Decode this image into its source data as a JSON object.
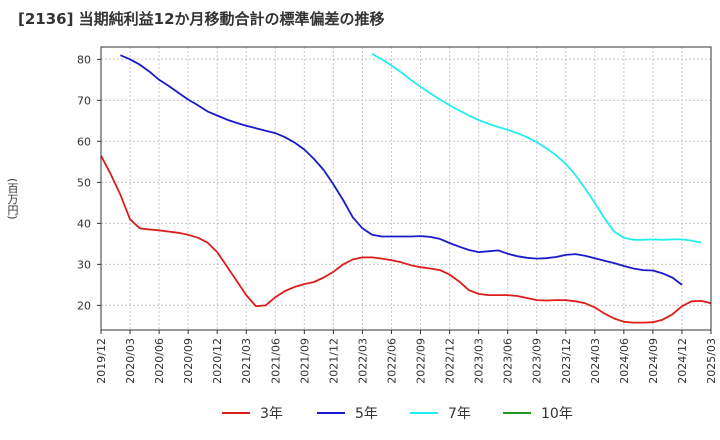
{
  "chart_data": {
    "type": "line",
    "title": "[2136]  当期純利益12か月移動合計の標準偏差の推移",
    "ylabel": "(百万円)",
    "xlabel": "",
    "ylim": [
      14,
      83
    ],
    "yticks": [
      20,
      30,
      40,
      50,
      60,
      70,
      80
    ],
    "xticks": [
      "2019/12",
      "2020/03",
      "2020/06",
      "2020/09",
      "2020/12",
      "2021/03",
      "2021/06",
      "2021/09",
      "2021/12",
      "2022/03",
      "2022/06",
      "2022/09",
      "2022/12",
      "2023/03",
      "2023/06",
      "2023/09",
      "2023/12",
      "2024/03",
      "2024/06",
      "2024/09",
      "2024/12",
      "2025/03"
    ],
    "series": [
      {
        "name": "3年",
        "color": "#dd1c1c",
        "start_index": 0,
        "values": [
          56.5,
          52,
          47,
          41,
          38.8,
          38.5,
          38.3,
          38,
          37.7,
          37.2,
          36.5,
          35.3,
          33,
          29.5,
          26,
          22.5,
          19.8,
          20,
          22,
          23.5,
          24.5,
          25.2,
          25.7,
          26.8,
          28.2,
          30,
          31.2,
          31.7,
          31.7,
          31.4,
          31,
          30.5,
          29.8,
          29.3,
          29,
          28.6,
          27.5,
          25.8,
          23.7,
          22.8,
          22.5,
          22.5,
          22.5,
          22.3,
          21.8,
          21.3,
          21.2,
          21.3,
          21.3,
          21,
          20.5,
          19.5,
          18,
          16.8,
          16,
          15.8,
          15.8,
          15.9,
          16.5,
          17.8,
          19.8,
          21,
          21.1,
          20.5
        ]
      },
      {
        "name": "5年",
        "color": "#1a1acb",
        "start_index": 2,
        "values": [
          81,
          80,
          78.7,
          77,
          75,
          73.5,
          71.8,
          70.2,
          68.8,
          67.3,
          66.3,
          65.3,
          64.5,
          63.8,
          63.2,
          62.6,
          62,
          61,
          59.7,
          58,
          55.7,
          53,
          49.5,
          45.7,
          41.5,
          38.8,
          37.2,
          36.8,
          36.8,
          36.8,
          36.8,
          36.9,
          36.7,
          36.2,
          35.2,
          34.3,
          33.5,
          33,
          33.2,
          33.4,
          32.6,
          32,
          31.6,
          31.4,
          31.5,
          31.8,
          32.3,
          32.5,
          32.1,
          31.5,
          30.9,
          30.3,
          29.6,
          29,
          28.6,
          28.5,
          27.8,
          26.8,
          25
        ]
      },
      {
        "name": "7年",
        "color": "#22eef0",
        "start_index": 28,
        "values": [
          81.3,
          80,
          78.5,
          76.8,
          75,
          73.3,
          71.7,
          70.2,
          68.8,
          67.5,
          66.3,
          65.2,
          64.3,
          63.5,
          62.8,
          62,
          61,
          59.8,
          58.3,
          56.6,
          54.5,
          51.8,
          48.5,
          45,
          41.2,
          38,
          36.5,
          36,
          36,
          36.1,
          36,
          36.1,
          36.1,
          35.8,
          35.3
        ]
      },
      {
        "name": "10年",
        "color": "#229922",
        "start_index": 0,
        "values": []
      }
    ]
  }
}
